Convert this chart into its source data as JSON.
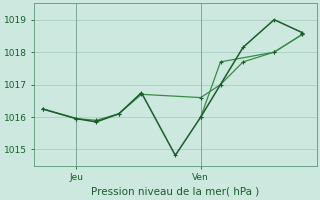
{
  "bg_color": "#cce8df",
  "grid_color": "#aacfc5",
  "line_color_dark": "#1a5c2a",
  "line_color_med": "#2a7a3a",
  "line_color_light": "#3a8a4a",
  "title": "Pression niveau de la mer( hPa )",
  "ylim": [
    1014.5,
    1019.5
  ],
  "yticks": [
    1015,
    1016,
    1017,
    1018,
    1019
  ],
  "xlim": [
    0,
    10
  ],
  "x_jeu": 1.5,
  "x_ven": 5.9,
  "series1_x": [
    0.3,
    1.5,
    2.2,
    3.0,
    3.8,
    5.9,
    6.6,
    7.4,
    8.5,
    9.5
  ],
  "series1_y": [
    1016.25,
    1015.95,
    1015.9,
    1016.1,
    1016.7,
    1016.6,
    1017.0,
    1017.7,
    1018.0,
    1018.55
  ],
  "series2_x": [
    0.3,
    1.5,
    2.2,
    3.0,
    3.8,
    5.0,
    5.9,
    7.4,
    8.5,
    9.5
  ],
  "series2_y": [
    1016.25,
    1015.95,
    1015.85,
    1016.1,
    1016.75,
    1014.82,
    1016.0,
    1018.15,
    1019.0,
    1018.6
  ],
  "series3_x": [
    5.9,
    6.6,
    8.5,
    9.5
  ],
  "series3_y": [
    1016.0,
    1017.7,
    1018.0,
    1018.55
  ]
}
